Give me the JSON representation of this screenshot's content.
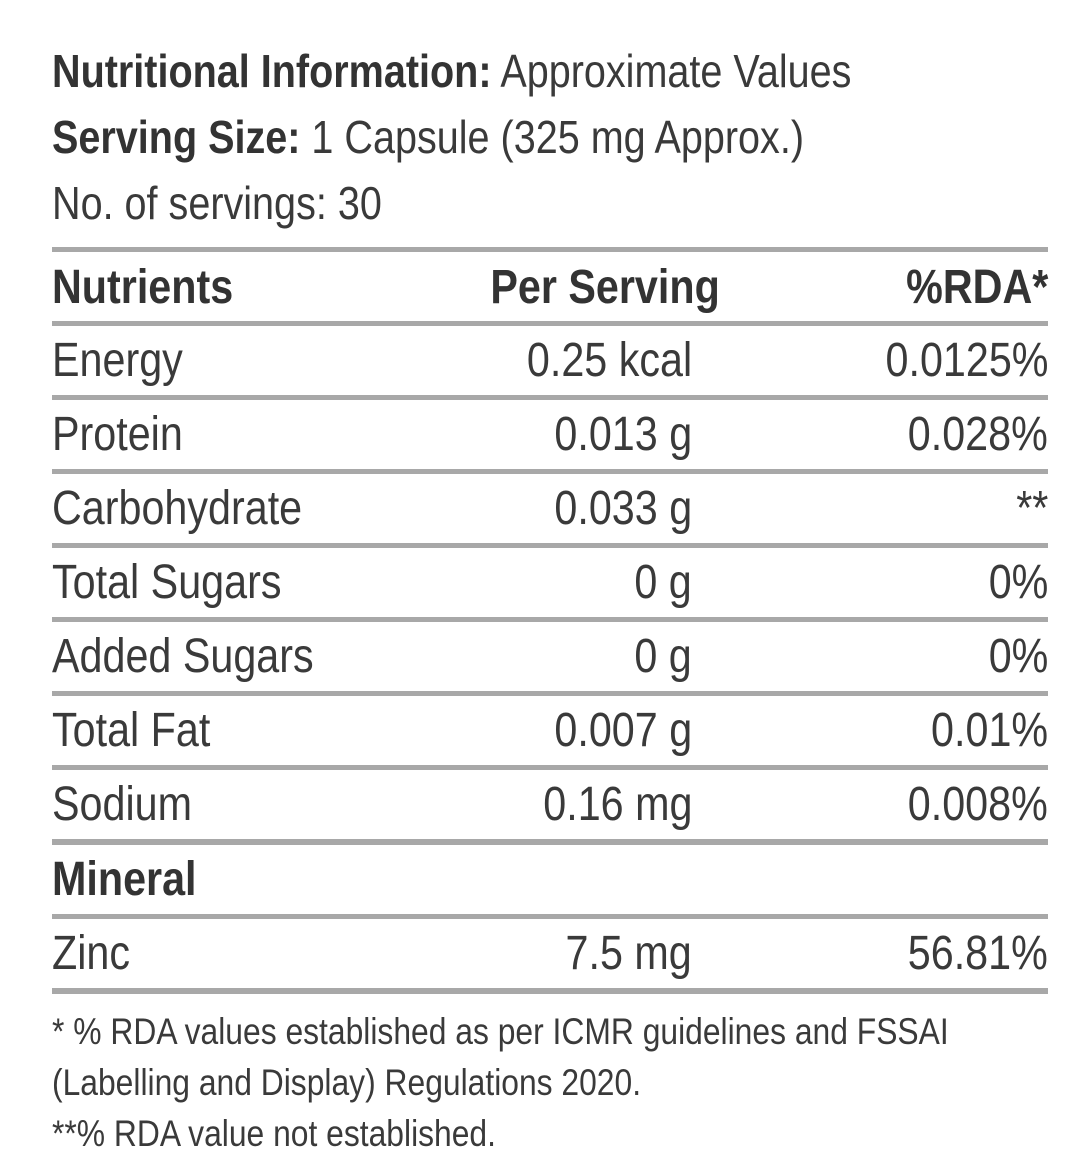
{
  "header": {
    "title_bold": "Nutritional Information:",
    "title_rest": " Approximate Values",
    "serving_bold": "Serving Size:",
    "serving_rest": " 1 Capsule (325 mg Approx.)",
    "servings_count": "No. of servings: 30"
  },
  "table": {
    "columns": [
      "Nutrients",
      "Per Serving",
      "%RDA*"
    ],
    "rows": [
      {
        "nutrient": "Energy",
        "per_serving": "0.25 kcal",
        "rda": "0.0125%"
      },
      {
        "nutrient": "Protein",
        "per_serving": "0.013 g",
        "rda": "0.028%"
      },
      {
        "nutrient": "Carbohydrate",
        "per_serving": "0.033 g",
        "rda": "**"
      },
      {
        "nutrient": "Total Sugars",
        "per_serving": "0 g",
        "rda": "0%"
      },
      {
        "nutrient": "Added Sugars",
        "per_serving": "0 g",
        "rda": "0%"
      },
      {
        "nutrient": "Total Fat",
        "per_serving": "0.007 g",
        "rda": "0.01%"
      },
      {
        "nutrient": "Sodium",
        "per_serving": "0.16 mg",
        "rda": "0.008%"
      }
    ],
    "section_label": "Mineral",
    "mineral_rows": [
      {
        "nutrient": "Zinc",
        "per_serving": "7.5 mg",
        "rda": "56.81%"
      }
    ]
  },
  "footnotes": {
    "line1": "* % RDA values established as per ICMR guidelines and FSSAI",
    "line2": "(Labelling and Display) Regulations 2020.",
    "line3": "**% RDA value not established."
  },
  "colors": {
    "text": "#3a3a3a",
    "rule": "#a8a8a8",
    "background": "#ffffff"
  }
}
